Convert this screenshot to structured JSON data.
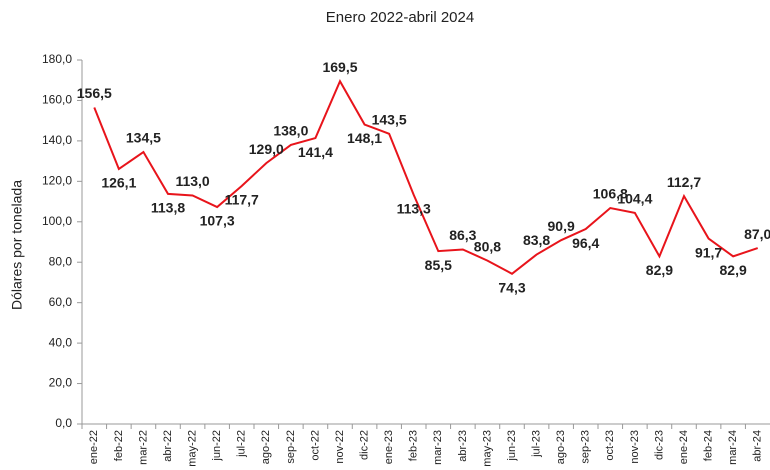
{
  "chart_data": {
    "type": "line",
    "title": "Enero 2022-abril 2024",
    "y_label": "Dólares por tonelada",
    "categories": [
      "ene-22",
      "feb-22",
      "mar-22",
      "abr-22",
      "may-22",
      "jun-22",
      "jul-22",
      "ago-22",
      "sep-22",
      "oct-22",
      "nov-22",
      "dic-22",
      "ene-23",
      "feb-23",
      "mar-23",
      "abr-23",
      "may-23",
      "jun-23",
      "jul-23",
      "ago-23",
      "sep-23",
      "oct-23",
      "nov-23",
      "dic-23",
      "ene-24",
      "feb-24",
      "mar-24",
      "abr-24"
    ],
    "series": [
      {
        "name": "Dólares por tonelada",
        "color": "#e8141b",
        "values": [
          156.5,
          126.1,
          134.5,
          113.8,
          113.0,
          107.3,
          117.7,
          129.0,
          138.0,
          141.4,
          169.5,
          148.1,
          143.5,
          113.3,
          85.5,
          86.3,
          80.8,
          74.3,
          83.8,
          90.9,
          96.4,
          106.8,
          104.4,
          82.9,
          112.7,
          91.7,
          82.9,
          87.0
        ],
        "value_labels": [
          "156,5",
          "126,1",
          "134,5",
          "113,8",
          "113,0",
          "107,3",
          "117,7",
          "129,0",
          "138,0",
          "141,4",
          "169,5",
          "148,1",
          "143,5",
          "113,3",
          "85,5",
          "86,3",
          "80,8",
          "74,3",
          "83,8",
          "90,9",
          "96,4",
          "106,8",
          "104,4",
          "82,9",
          "112,7",
          "91,7",
          "82,9",
          "87,0"
        ]
      }
    ],
    "ylim": [
      0,
      180
    ],
    "yticks": [
      {
        "value": 0,
        "label": "0,0"
      },
      {
        "value": 20,
        "label": "20,0"
      },
      {
        "value": 40,
        "label": "40,0"
      },
      {
        "value": 60,
        "label": "60,0"
      },
      {
        "value": 80,
        "label": "80,0"
      },
      {
        "value": 100,
        "label": "100,0"
      },
      {
        "value": 120,
        "label": "120,0"
      },
      {
        "value": 140,
        "label": "140,0"
      },
      {
        "value": 160,
        "label": "160,0"
      },
      {
        "value": 180,
        "label": "180,0"
      }
    ],
    "grid": false
  }
}
